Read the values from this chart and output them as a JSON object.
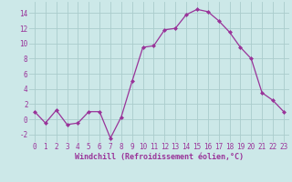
{
  "x": [
    0,
    1,
    2,
    3,
    4,
    5,
    6,
    7,
    8,
    9,
    10,
    11,
    12,
    13,
    14,
    15,
    16,
    17,
    18,
    19,
    20,
    21,
    22,
    23
  ],
  "y": [
    1,
    -0.5,
    1.2,
    -0.7,
    -0.5,
    1,
    1,
    -2.5,
    0.3,
    5,
    9.5,
    9.7,
    11.8,
    12,
    13.8,
    14.5,
    14.2,
    13,
    11.5,
    9.5,
    8,
    3.5,
    2.5,
    1
  ],
  "line_color": "#993399",
  "marker": "D",
  "marker_size": 2,
  "bg_color": "#cce8e8",
  "grid_color": "#aacccc",
  "xlabel": "Windchill (Refroidissement éolien,°C)",
  "ylim": [
    -3,
    15.5
  ],
  "xlim": [
    -0.5,
    23.5
  ],
  "yticks": [
    -2,
    0,
    2,
    4,
    6,
    8,
    10,
    12,
    14
  ],
  "xticks": [
    0,
    1,
    2,
    3,
    4,
    5,
    6,
    7,
    8,
    9,
    10,
    11,
    12,
    13,
    14,
    15,
    16,
    17,
    18,
    19,
    20,
    21,
    22,
    23
  ],
  "tick_fontsize": 5.5,
  "xlabel_fontsize": 6.0
}
